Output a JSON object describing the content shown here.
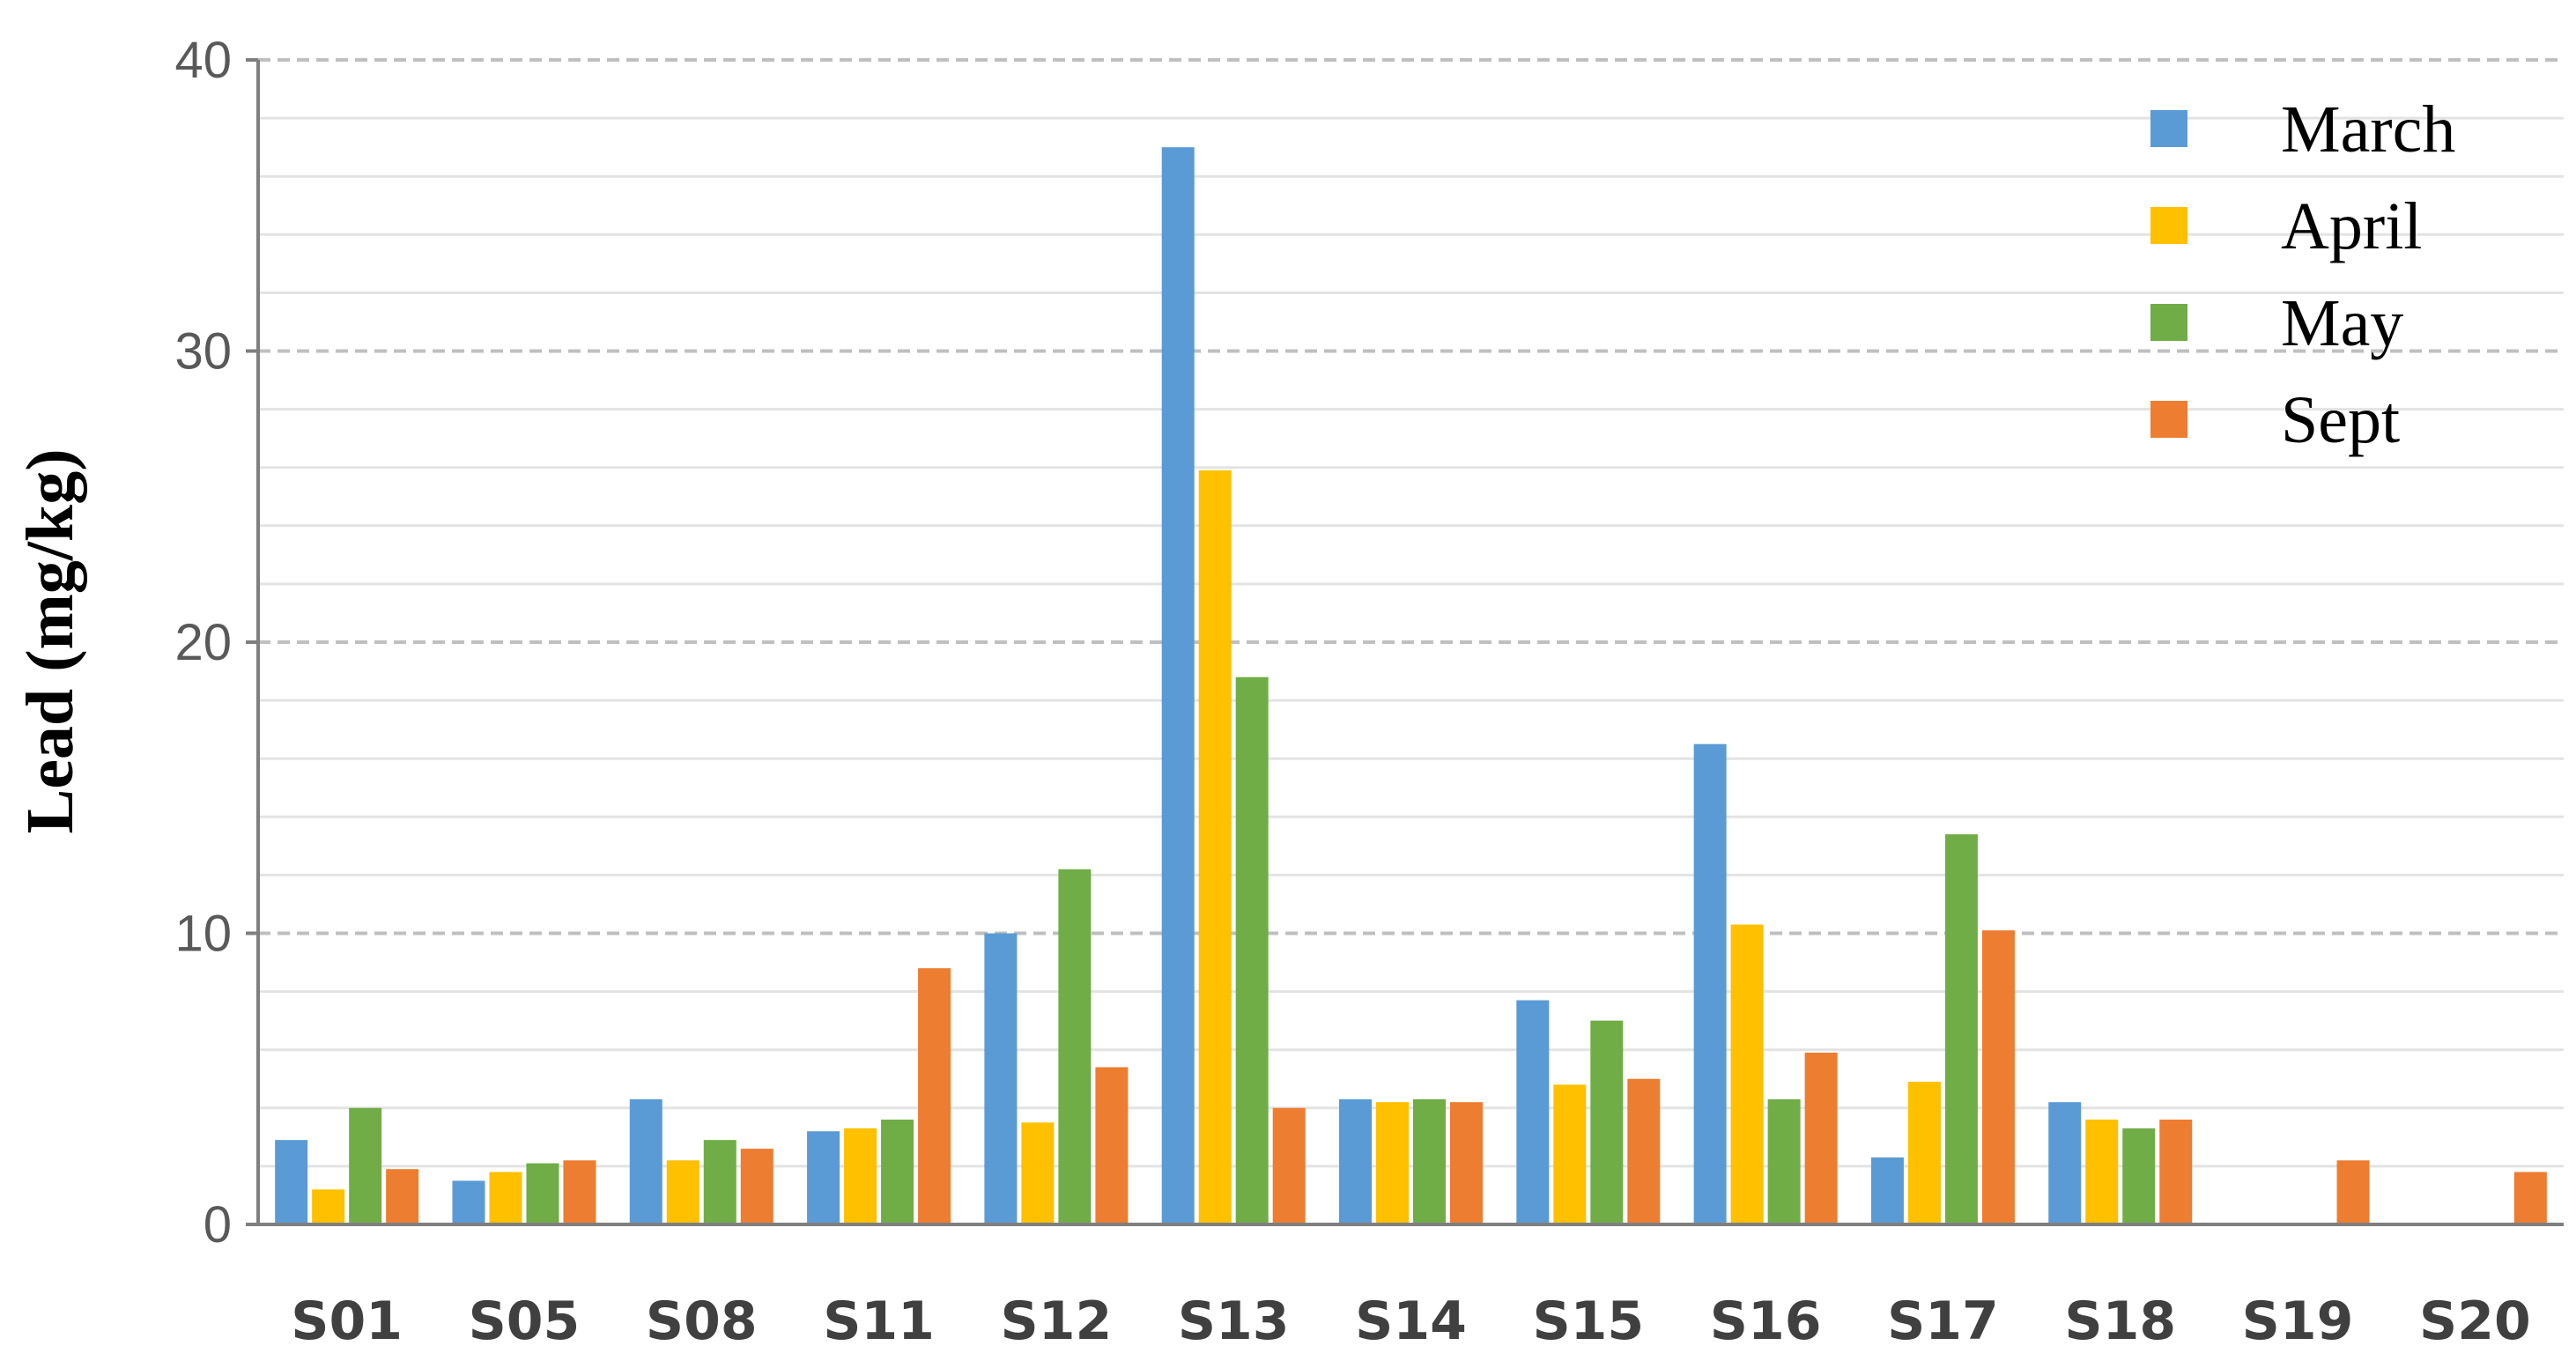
{
  "chart_data": {
    "type": "bar",
    "title": "",
    "xlabel": "",
    "ylabel": "Lead (mg/kg)",
    "ylim": [
      0,
      40
    ],
    "yticks": [
      0,
      10,
      20,
      30,
      40
    ],
    "grid": true,
    "legend_position": "top-right",
    "categories": [
      "S01",
      "S05",
      "S08",
      "S11",
      "S12",
      "S13",
      "S14",
      "S15",
      "S16",
      "S17",
      "S18",
      "S19",
      "S20"
    ],
    "series": [
      {
        "name": "March",
        "color": "#5b9bd5",
        "values": [
          2.9,
          1.5,
          4.3,
          3.2,
          10.0,
          37.0,
          4.3,
          7.7,
          16.5,
          2.3,
          4.2,
          0,
          0
        ]
      },
      {
        "name": "April",
        "color": "#ffc000",
        "values": [
          1.2,
          1.8,
          2.2,
          3.3,
          3.5,
          25.9,
          4.2,
          4.8,
          10.3,
          4.9,
          3.6,
          0,
          0
        ]
      },
      {
        "name": "May",
        "color": "#70ad47",
        "values": [
          4.0,
          2.1,
          2.9,
          3.6,
          12.2,
          18.8,
          4.3,
          7.0,
          4.3,
          13.4,
          3.3,
          0,
          0
        ]
      },
      {
        "name": "Sept",
        "color": "#ed7d31",
        "values": [
          1.9,
          2.2,
          2.6,
          8.8,
          5.4,
          4.0,
          4.2,
          5.0,
          5.9,
          10.1,
          3.6,
          2.2,
          1.8
        ]
      }
    ]
  }
}
